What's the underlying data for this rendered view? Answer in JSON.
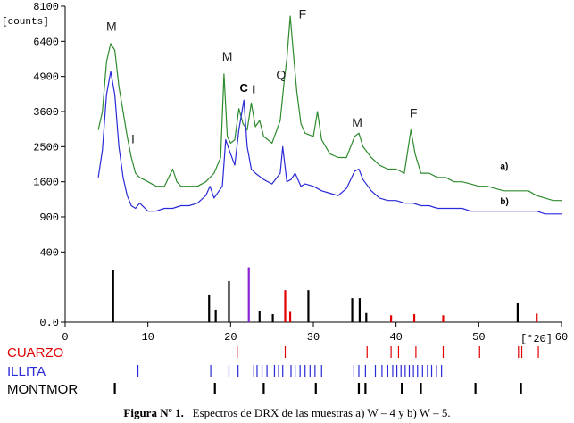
{
  "chart_data": {
    "type": "line",
    "ylabel": "[counts]",
    "xlabel": "[°2Θ]",
    "xlim": [
      0,
      60
    ],
    "x_ticks": [
      0,
      10,
      20,
      30,
      40,
      50,
      60
    ],
    "y_tick_labels": [
      "0.0",
      "400",
      "900",
      "1600",
      "2500",
      "3600",
      "4900",
      "6400",
      "8100"
    ],
    "y_tick_values": [
      0,
      400,
      900,
      1600,
      2500,
      3600,
      4900,
      6400,
      8100
    ],
    "y_scale": "sqrt",
    "grid": false,
    "series": [
      {
        "name": "a)",
        "color": "#2e8b2e",
        "x": [
          4,
          4.5,
          5,
          5.5,
          6,
          6.5,
          7,
          7.5,
          8,
          8.5,
          9,
          10,
          11,
          12,
          13,
          13.5,
          14,
          15,
          16,
          17,
          18,
          18.8,
          19.2,
          19.6,
          20,
          20.5,
          21,
          21.5,
          22,
          22.5,
          23,
          23.5,
          24,
          25,
          26,
          26.5,
          26.8,
          27.2,
          27.6,
          28,
          28.5,
          29,
          30,
          30.5,
          31,
          32,
          33,
          34,
          35,
          35.5,
          36,
          37,
          38,
          39,
          40,
          41,
          41.8,
          42.3,
          43,
          44,
          45,
          46,
          47,
          48,
          49,
          50,
          51,
          52,
          53,
          54,
          55,
          56,
          57,
          58,
          59,
          60
        ],
        "values": [
          3000,
          3600,
          5500,
          6300,
          6000,
          4500,
          3600,
          2800,
          2200,
          1800,
          1700,
          1600,
          1500,
          1500,
          1900,
          1600,
          1500,
          1500,
          1500,
          1600,
          1800,
          2200,
          5000,
          2800,
          2600,
          2700,
          3700,
          3200,
          3000,
          3900,
          3100,
          3300,
          2800,
          2600,
          3300,
          4800,
          5600,
          7600,
          5800,
          4300,
          3200,
          2900,
          2800,
          3600,
          2700,
          2300,
          2200,
          2200,
          2800,
          2900,
          2500,
          2200,
          2000,
          1900,
          1900,
          1800,
          3000,
          2300,
          1800,
          1800,
          1700,
          1700,
          1600,
          1600,
          1550,
          1500,
          1500,
          1450,
          1400,
          1400,
          1400,
          1400,
          1300,
          1250,
          1200,
          1200
        ]
      },
      {
        "name": "b)",
        "color": "#2a2ad8",
        "x": [
          4,
          4.5,
          5,
          5.5,
          6,
          6.5,
          7,
          7.5,
          8,
          8.5,
          9,
          10,
          11,
          12,
          13,
          14,
          15,
          16,
          17,
          17.5,
          18,
          19,
          19.4,
          20,
          20.5,
          21,
          21.6,
          22,
          22.5,
          23,
          24,
          25,
          26,
          26.3,
          26.8,
          27.3,
          27.8,
          28.5,
          29,
          30,
          31,
          32,
          33,
          34,
          35,
          35.5,
          36,
          37,
          38,
          39,
          40,
          41,
          42,
          43,
          44,
          45,
          46,
          47,
          48,
          49,
          50,
          51,
          52,
          53,
          54,
          55,
          56,
          57,
          58,
          59,
          60
        ],
        "values": [
          1700,
          2400,
          4200,
          5100,
          4200,
          2500,
          1700,
          1300,
          1100,
          1050,
          1150,
          1000,
          1000,
          1050,
          1050,
          1100,
          1100,
          1150,
          1300,
          1500,
          1250,
          1500,
          2700,
          2300,
          2000,
          3000,
          4000,
          2500,
          1900,
          1800,
          1650,
          1550,
          1800,
          2500,
          1600,
          1650,
          1800,
          1500,
          1550,
          1500,
          1400,
          1350,
          1300,
          1450,
          1850,
          1900,
          1650,
          1400,
          1250,
          1200,
          1200,
          1150,
          1150,
          1100,
          1100,
          1050,
          1050,
          1050,
          1050,
          1000,
          1000,
          1000,
          1000,
          1000,
          1000,
          1000,
          1000,
          1000,
          950,
          950,
          950
        ]
      }
    ],
    "peak_annotations": [
      {
        "text": "M",
        "x": 5.6,
        "y": 6900
      },
      {
        "text": "I",
        "x": 8.2,
        "y": 2600
      },
      {
        "text": "M",
        "x": 19.6,
        "y": 5550
      },
      {
        "text": "C",
        "x": 21.6,
        "y": 4300,
        "bold": true
      },
      {
        "text": "I",
        "x": 22.8,
        "y": 4250,
        "bold": true
      },
      {
        "text": "Q",
        "x": 26.1,
        "y": 4800
      },
      {
        "text": "F",
        "x": 28.7,
        "y": 7500
      },
      {
        "text": "M",
        "x": 35.3,
        "y": 3100
      },
      {
        "text": "F",
        "x": 42.1,
        "y": 3400
      }
    ],
    "series_labels": [
      {
        "text": "a)",
        "x": 52.6,
        "y": 1900
      },
      {
        "text": "b)",
        "x": 52.6,
        "y": 1130
      }
    ],
    "reference_bars": [
      {
        "x": 5.8,
        "h": 0.92,
        "color": "#000000"
      },
      {
        "x": 17.4,
        "h": 0.47,
        "color": "#000000"
      },
      {
        "x": 18.2,
        "h": 0.22,
        "color": "#000000"
      },
      {
        "x": 19.8,
        "h": 0.72,
        "color": "#000000"
      },
      {
        "x": 22.2,
        "h": 0.96,
        "color": "#8a1fd6"
      },
      {
        "x": 23.5,
        "h": 0.2,
        "color": "#000000"
      },
      {
        "x": 25.1,
        "h": 0.14,
        "color": "#000000"
      },
      {
        "x": 26.6,
        "h": 0.56,
        "color": "#e00000"
      },
      {
        "x": 27.2,
        "h": 0.18,
        "color": "#e00000"
      },
      {
        "x": 29.4,
        "h": 0.56,
        "color": "#000000"
      },
      {
        "x": 34.7,
        "h": 0.42,
        "color": "#000000"
      },
      {
        "x": 35.6,
        "h": 0.42,
        "color": "#000000"
      },
      {
        "x": 36.4,
        "h": 0.16,
        "color": "#000000"
      },
      {
        "x": 39.4,
        "h": 0.12,
        "color": "#e00000"
      },
      {
        "x": 42.2,
        "h": 0.14,
        "color": "#e00000"
      },
      {
        "x": 45.7,
        "h": 0.12,
        "color": "#e00000"
      },
      {
        "x": 54.7,
        "h": 0.34,
        "color": "#000000"
      },
      {
        "x": 57.0,
        "h": 0.15,
        "color": "#e00000"
      }
    ],
    "phases": [
      {
        "name": "CUARZO",
        "color": "#e00000",
        "positions": [
          20.8,
          26.6,
          36.5,
          39.4,
          40.3,
          42.4,
          45.7,
          50.1,
          54.8,
          55.2,
          57.2
        ]
      },
      {
        "name": "ILLITA",
        "color": "#2a2ad8",
        "positions": [
          8.8,
          17.6,
          19.8,
          20.9,
          22.8,
          23.2,
          23.8,
          24.4,
          25.3,
          25.8,
          26.3,
          27.3,
          27.8,
          28.4,
          29.0,
          29.6,
          30.2,
          31.0,
          34.9,
          35.5,
          36.3,
          37.5,
          38.3,
          39.0,
          39.6,
          40.1,
          40.6,
          41.1,
          41.6,
          42.1,
          42.6,
          43.2,
          43.8,
          44.3,
          44.9,
          45.5
        ]
      },
      {
        "name": "MONTMOR",
        "color": "#000000",
        "positions": [
          6.0,
          18.1,
          24.0,
          30.3,
          35.5,
          36.3,
          40.7,
          43.0,
          49.6,
          55.1
        ]
      }
    ]
  },
  "caption": {
    "label": "Figura Nº 1.",
    "text": "Espectros de DRX de las muestras a) W – 4 y b) W – 5."
  }
}
